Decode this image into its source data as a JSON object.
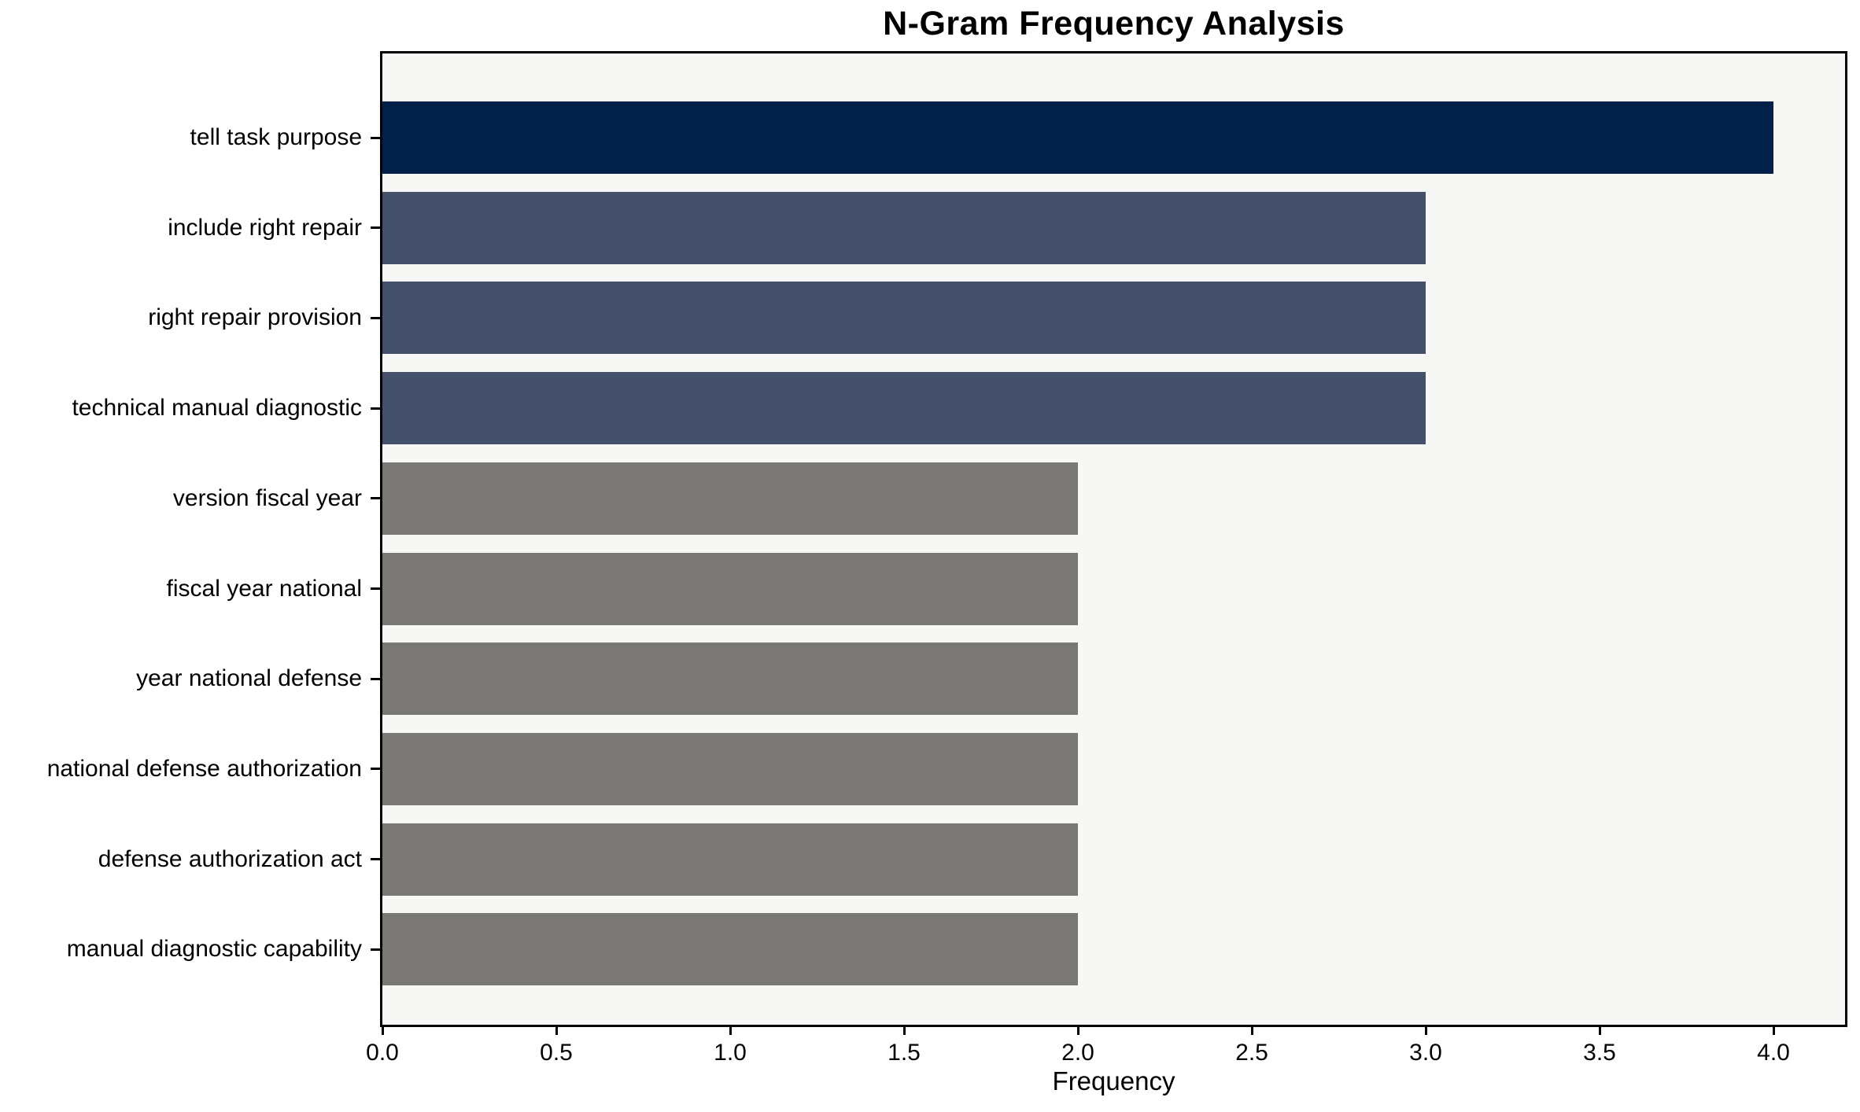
{
  "chart": {
    "title": "N-Gram Frequency Analysis",
    "xlabel": "Frequency"
  },
  "chart_data": {
    "type": "bar",
    "orientation": "horizontal",
    "title": "N-Gram Frequency Analysis",
    "xlabel": "Frequency",
    "ylabel": "",
    "categories": [
      "tell task purpose",
      "include right repair",
      "right repair provision",
      "technical manual diagnostic",
      "version fiscal year",
      "fiscal year national",
      "year national defense",
      "national defense authorization",
      "defense authorization act",
      "manual diagnostic capability"
    ],
    "values": [
      4,
      3,
      3,
      3,
      2,
      2,
      2,
      2,
      2,
      2
    ],
    "bar_colors": [
      "#01214a",
      "#45506b",
      "#45506b",
      "#45506b",
      "#7a7875",
      "#7a7875",
      "#7a7875",
      "#7a7875",
      "#7a7875",
      "#7a7875"
    ],
    "xlim": [
      0,
      4.2
    ],
    "x_ticks": [
      0.0,
      0.5,
      1.0,
      1.5,
      2.0,
      2.5,
      3.0,
      3.5,
      4.0
    ],
    "x_tick_labels": [
      "0.0",
      "0.5",
      "1.0",
      "1.5",
      "2.0",
      "2.5",
      "3.0",
      "3.5",
      "4.0"
    ],
    "grid": false,
    "legend": null,
    "plot_background": "#f7f7f6",
    "figure_background": "#ffffff",
    "spine_color": "#000000"
  }
}
